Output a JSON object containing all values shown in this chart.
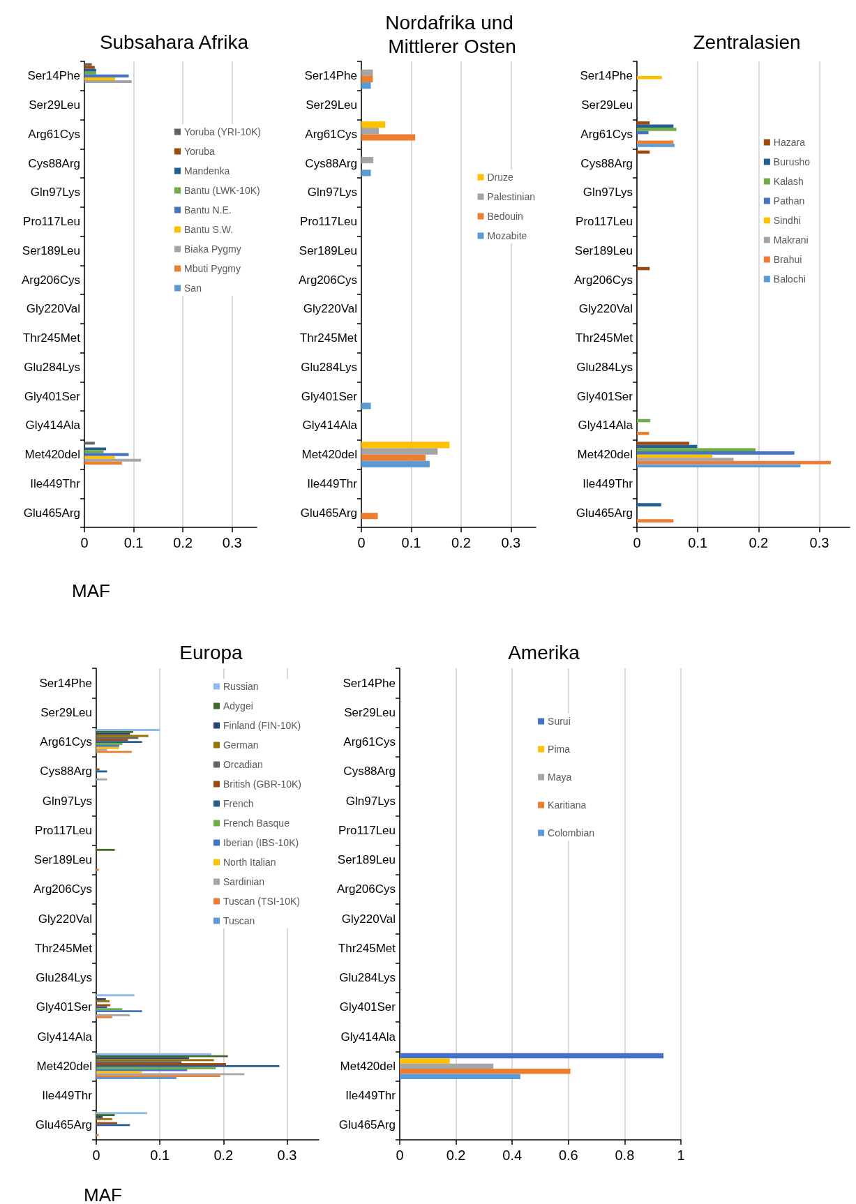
{
  "chart_data": [
    {
      "type": "bar",
      "orientation": "horizontal",
      "title": "Subsahara Afrika",
      "xlabel": "MAF",
      "categories": [
        "Ser14Phe",
        "Ser29Leu",
        "Arg61Cys",
        "Cys88Arg",
        "Gln97Lys",
        "Pro117Leu",
        "Ser189Leu",
        "Arg206Cys",
        "Gly220Val",
        "Thr245Met",
        "Glu284Lys",
        "Gly401Ser",
        "Gly414Ala",
        "Met420del",
        "Ile449Thr",
        "Glu465Arg"
      ],
      "xlim": [
        0,
        0.35
      ],
      "xticks": [
        0,
        0.1,
        0.2,
        0.3
      ],
      "grid": "x",
      "legend": "right",
      "series": [
        {
          "name": "Yoruba (YRI-10K)",
          "color": "#636363",
          "values": [
            0.015,
            null,
            null,
            null,
            null,
            null,
            null,
            null,
            null,
            null,
            null,
            null,
            null,
            0.021,
            null,
            null
          ]
        },
        {
          "name": "Yoruba",
          "color": "#9e480e",
          "values": [
            0.021,
            null,
            null,
            null,
            null,
            null,
            null,
            null,
            null,
            null,
            null,
            null,
            null,
            null,
            null,
            null
          ]
        },
        {
          "name": "Mandenka",
          "color": "#255e91",
          "values": [
            0.024,
            null,
            null,
            null,
            null,
            null,
            null,
            null,
            null,
            null,
            null,
            null,
            null,
            0.044,
            null,
            null
          ]
        },
        {
          "name": "Bantu (LWK-10K)",
          "color": "#70ad47",
          "values": [
            0.024,
            null,
            null,
            null,
            null,
            null,
            null,
            null,
            null,
            null,
            null,
            null,
            null,
            0.039,
            null,
            null
          ]
        },
        {
          "name": "Bantu N.E.",
          "color": "#4472c4",
          "values": [
            0.09,
            null,
            null,
            null,
            null,
            null,
            null,
            null,
            null,
            null,
            null,
            null,
            null,
            0.09,
            null,
            null
          ]
        },
        {
          "name": "Bantu S.W.",
          "color": "#ffc000",
          "values": [
            0.062,
            null,
            null,
            null,
            null,
            null,
            null,
            null,
            null,
            null,
            null,
            null,
            null,
            0.062,
            null,
            null
          ]
        },
        {
          "name": "Biaka Pygmy",
          "color": "#a5a5a5",
          "values": [
            0.096,
            null,
            null,
            null,
            null,
            null,
            null,
            null,
            null,
            null,
            null,
            null,
            null,
            0.115,
            null,
            null
          ]
        },
        {
          "name": "Mbuti Pygmy",
          "color": "#ed7d31",
          "values": [
            null,
            null,
            null,
            null,
            null,
            null,
            null,
            null,
            null,
            null,
            null,
            null,
            null,
            0.076,
            null,
            null
          ]
        },
        {
          "name": "San",
          "color": "#5b9bd5",
          "values": [
            null,
            null,
            null,
            null,
            null,
            null,
            null,
            null,
            null,
            null,
            null,
            null,
            null,
            null,
            null,
            null
          ]
        }
      ]
    },
    {
      "type": "bar",
      "orientation": "horizontal",
      "title": "Nordafrika und Mittlerer Osten",
      "categories": [
        "Ser14Phe",
        "Ser29Leu",
        "Arg61Cys",
        "Cys88Arg",
        "Gln97Lys",
        "Pro117Leu",
        "Ser189Leu",
        "Arg206Cys",
        "Gly220Val",
        "Thr245Met",
        "Glu284Lys",
        "Gly401Ser",
        "Gly414Ala",
        "Met420del",
        "Ile449Thr",
        "Glu465Arg"
      ],
      "xlim": [
        0,
        0.35
      ],
      "xticks": [
        0,
        0.1,
        0.2,
        0.3
      ],
      "grid": "x",
      "legend": "right",
      "series": [
        {
          "name": "Druze",
          "color": "#ffc000",
          "values": [
            null,
            null,
            0.048,
            null,
            null,
            null,
            null,
            null,
            null,
            null,
            null,
            null,
            null,
            0.177,
            null,
            null
          ]
        },
        {
          "name": "Palestinian",
          "color": "#a5a5a5",
          "values": [
            0.023,
            null,
            0.035,
            0.024,
            null,
            null,
            null,
            null,
            null,
            null,
            null,
            null,
            null,
            0.153,
            null,
            null
          ]
        },
        {
          "name": "Bedouin",
          "color": "#ed7d31",
          "values": [
            0.023,
            null,
            0.108,
            null,
            null,
            null,
            null,
            null,
            null,
            null,
            null,
            null,
            null,
            0.129,
            null,
            0.033
          ]
        },
        {
          "name": "Mozabite",
          "color": "#5b9bd5",
          "values": [
            0.019,
            null,
            null,
            0.019,
            null,
            null,
            null,
            null,
            null,
            null,
            null,
            0.019,
            null,
            0.137,
            null,
            null
          ]
        }
      ]
    },
    {
      "type": "bar",
      "orientation": "horizontal",
      "title": "Zentralasien",
      "categories": [
        "Ser14Phe",
        "Ser29Leu",
        "Arg61Cys",
        "Cys88Arg",
        "Gln97Lys",
        "Pro117Leu",
        "Ser189Leu",
        "Arg206Cys",
        "Gly220Val",
        "Thr245Met",
        "Glu284Lys",
        "Gly401Ser",
        "Gly414Ala",
        "Met420del",
        "Ile449Thr",
        "Glu465Arg"
      ],
      "xlim": [
        0,
        0.35
      ],
      "xticks": [
        0,
        0.1,
        0.2,
        0.3
      ],
      "grid": "x",
      "legend": "right",
      "series": [
        {
          "name": "Hazara",
          "color": "#9e480e",
          "values": [
            null,
            null,
            0.021,
            0.021,
            null,
            null,
            null,
            0.021,
            null,
            null,
            null,
            null,
            null,
            0.086,
            null,
            null
          ]
        },
        {
          "name": "Burusho",
          "color": "#255e91",
          "values": [
            null,
            null,
            0.06,
            null,
            null,
            null,
            null,
            null,
            null,
            null,
            null,
            null,
            null,
            0.099,
            null,
            0.04
          ]
        },
        {
          "name": "Kalash",
          "color": "#70ad47",
          "values": [
            null,
            null,
            0.065,
            null,
            null,
            null,
            null,
            null,
            null,
            null,
            null,
            null,
            0.022,
            0.195,
            null,
            null
          ]
        },
        {
          "name": "Pathan",
          "color": "#4472c4",
          "values": [
            null,
            null,
            0.019,
            null,
            null,
            null,
            null,
            null,
            null,
            null,
            null,
            null,
            null,
            0.259,
            null,
            null
          ]
        },
        {
          "name": "Sindhi",
          "color": "#ffc000",
          "values": [
            0.041,
            null,
            null,
            null,
            null,
            null,
            null,
            null,
            null,
            null,
            null,
            null,
            null,
            0.124,
            null,
            null
          ]
        },
        {
          "name": "Makrani",
          "color": "#a5a5a5",
          "values": [
            null,
            null,
            null,
            null,
            null,
            null,
            null,
            null,
            null,
            null,
            null,
            null,
            null,
            0.159,
            null,
            null
          ]
        },
        {
          "name": "Brahui",
          "color": "#ed7d31",
          "values": [
            null,
            null,
            0.06,
            null,
            null,
            null,
            null,
            null,
            null,
            null,
            null,
            null,
            0.02,
            0.319,
            null,
            0.06
          ]
        },
        {
          "name": "Balochi",
          "color": "#5b9bd5",
          "values": [
            null,
            null,
            0.062,
            null,
            null,
            null,
            null,
            null,
            null,
            null,
            null,
            null,
            null,
            0.269,
            null,
            null
          ]
        }
      ]
    },
    {
      "type": "bar",
      "orientation": "horizontal",
      "title": "Europa",
      "xlabel": "MAF",
      "categories": [
        "Ser14Phe",
        "Ser29Leu",
        "Arg61Cys",
        "Cys88Arg",
        "Gln97Lys",
        "Pro117Leu",
        "Ser189Leu",
        "Arg206Cys",
        "Gly220Val",
        "Thr245Met",
        "Glu284Lys",
        "Gly401Ser",
        "Gly414Ala",
        "Met420del",
        "Ile449Thr",
        "Glu465Arg"
      ],
      "xlim": [
        0,
        0.35
      ],
      "xticks": [
        0,
        0.1,
        0.2,
        0.3
      ],
      "grid": "x",
      "legend": "top right",
      "series": [
        {
          "name": "Russian",
          "color": "#8fbbe8",
          "values": [
            null,
            null,
            0.1,
            null,
            null,
            null,
            null,
            null,
            null,
            null,
            null,
            0.06,
            null,
            0.181,
            null,
            0.08
          ]
        },
        {
          "name": "Adygei",
          "color": "#43682b",
          "values": [
            null,
            null,
            0.058,
            null,
            null,
            null,
            0.029,
            null,
            null,
            null,
            null,
            null,
            null,
            0.207,
            null,
            0.029
          ]
        },
        {
          "name": "Finland (FIN-10K)",
          "color": "#264478",
          "values": [
            null,
            null,
            0.053,
            null,
            null,
            null,
            null,
            null,
            null,
            null,
            null,
            0.015,
            null,
            0.146,
            null,
            0.01
          ]
        },
        {
          "name": "German",
          "color": "#997300",
          "values": [
            null,
            null,
            0.082,
            null,
            null,
            null,
            null,
            null,
            null,
            null,
            null,
            0.021,
            null,
            0.185,
            null,
            0.025
          ]
        },
        {
          "name": "Orcadian",
          "color": "#636363",
          "values": [
            null,
            null,
            0.066,
            null,
            null,
            null,
            null,
            null,
            null,
            null,
            null,
            null,
            null,
            0.134,
            null,
            null
          ]
        },
        {
          "name": "British (GBR-10K)",
          "color": "#9e480e",
          "values": [
            null,
            null,
            0.05,
            0.005,
            null,
            null,
            null,
            null,
            null,
            null,
            null,
            0.022,
            null,
            0.204,
            null,
            0.033
          ]
        },
        {
          "name": "French",
          "color": "#255e91",
          "values": [
            null,
            null,
            0.072,
            0.017,
            null,
            null,
            null,
            null,
            null,
            null,
            null,
            0.017,
            null,
            0.288,
            null,
            0.053
          ]
        },
        {
          "name": "French Basque",
          "color": "#70ad47",
          "values": [
            null,
            null,
            0.041,
            null,
            null,
            null,
            null,
            null,
            null,
            null,
            null,
            0.041,
            null,
            0.188,
            null,
            null
          ]
        },
        {
          "name": "Iberian (IBS-10K)",
          "color": "#4472c4",
          "values": [
            null,
            null,
            0.036,
            null,
            null,
            null,
            null,
            null,
            null,
            null,
            null,
            0.072,
            null,
            0.143,
            null,
            null
          ]
        },
        {
          "name": "North Italian",
          "color": "#ffc000",
          "values": [
            null,
            null,
            0.036,
            null,
            null,
            null,
            null,
            null,
            null,
            null,
            null,
            null,
            null,
            0.072,
            null,
            null
          ]
        },
        {
          "name": "Sardinian",
          "color": "#a5a5a5",
          "values": [
            null,
            null,
            0.017,
            0.017,
            null,
            null,
            null,
            null,
            null,
            null,
            null,
            0.053,
            null,
            0.233,
            null,
            null
          ]
        },
        {
          "name": "Tuscan (TSI-10K)",
          "color": "#ed7d31",
          "values": [
            null,
            null,
            0.056,
            null,
            null,
            null,
            0.004,
            null,
            null,
            null,
            null,
            0.025,
            null,
            0.195,
            null,
            0.004
          ]
        },
        {
          "name": "Tuscan",
          "color": "#5b9bd5",
          "values": [
            null,
            null,
            null,
            null,
            null,
            null,
            null,
            null,
            null,
            null,
            null,
            null,
            null,
            0.126,
            null,
            null
          ]
        }
      ]
    },
    {
      "type": "bar",
      "orientation": "horizontal",
      "title": "Amerika",
      "categories": [
        "Ser14Phe",
        "Ser29Leu",
        "Arg61Cys",
        "Cys88Arg",
        "Gln97Lys",
        "Pro117Leu",
        "Ser189Leu",
        "Arg206Cys",
        "Gly220Val",
        "Thr245Met",
        "Glu284Lys",
        "Gly401Ser",
        "Gly414Ala",
        "Met420del",
        "Ile449Thr",
        "Glu465Arg"
      ],
      "xlim": [
        0,
        1
      ],
      "xticks": [
        0,
        0.2,
        0.4,
        0.6,
        0.8,
        1
      ],
      "grid": "x",
      "legend": "top right",
      "series": [
        {
          "name": "Surui",
          "color": "#4472c4",
          "values": [
            null,
            null,
            null,
            null,
            null,
            null,
            null,
            null,
            null,
            null,
            null,
            null,
            null,
            0.938,
            null,
            null
          ]
        },
        {
          "name": "Pima",
          "color": "#ffc000",
          "values": [
            null,
            null,
            null,
            null,
            null,
            null,
            null,
            null,
            null,
            null,
            null,
            null,
            null,
            0.178,
            null,
            null
          ]
        },
        {
          "name": "Maya",
          "color": "#a5a5a5",
          "values": [
            null,
            null,
            null,
            null,
            null,
            null,
            null,
            null,
            null,
            null,
            null,
            null,
            null,
            0.333,
            null,
            null
          ]
        },
        {
          "name": "Karitiana",
          "color": "#ed7d31",
          "values": [
            null,
            null,
            null,
            null,
            null,
            null,
            null,
            null,
            null,
            null,
            null,
            null,
            null,
            0.607,
            null,
            null
          ]
        },
        {
          "name": "Colombian",
          "color": "#5b9bd5",
          "values": [
            null,
            null,
            null,
            null,
            null,
            null,
            null,
            null,
            null,
            null,
            null,
            null,
            null,
            0.429,
            null,
            null
          ]
        }
      ]
    }
  ]
}
